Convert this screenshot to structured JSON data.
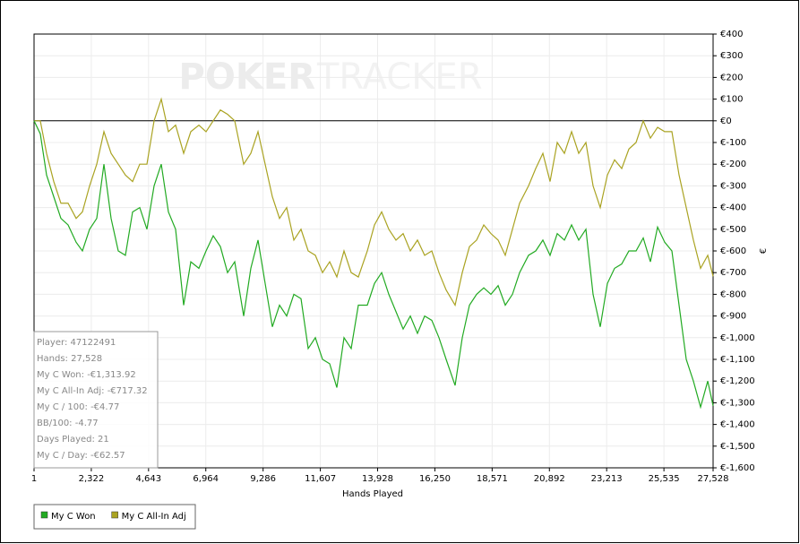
{
  "chart_data": {
    "type": "line",
    "watermark": [
      "POKER",
      "TRACKER"
    ],
    "xlabel": "Hands Played",
    "ylabel": "€",
    "x": [
      1,
      255,
      509,
      800,
      1090,
      1381,
      1708,
      1962,
      2253,
      2543,
      2834,
      3124,
      3415,
      3705,
      3996,
      4286,
      4577,
      4867,
      5158,
      5448,
      5739,
      6066,
      6356,
      6683,
      6974,
      7264,
      7555,
      7845,
      8136,
      8499,
      8789,
      9080,
      9370,
      9661,
      9952,
      10242,
      10533,
      10823,
      11114,
      11404,
      11695,
      11985,
      12276,
      12566,
      12857,
      13147,
      13511,
      13801,
      14092,
      14382,
      14673,
      14963,
      15254,
      15544,
      15835,
      16125,
      16416,
      16706,
      17070,
      17360,
      17651,
      17941,
      18232,
      18522,
      18813,
      19103,
      19394,
      19684,
      20047,
      20338,
      20628,
      20919,
      21210,
      21500,
      21791,
      22081,
      22372,
      22662,
      22953,
      23243,
      23534,
      23824,
      24115,
      24405,
      24696,
      24986,
      25277,
      25567,
      25858,
      26148,
      26439,
      26729,
      27020,
      27311,
      27528
    ],
    "series": [
      {
        "name": "My C Won",
        "color": "#22aa22",
        "values": [
          0,
          -60,
          -250,
          -350,
          -450,
          -480,
          -560,
          -600,
          -500,
          -450,
          -200,
          -450,
          -600,
          -620,
          -420,
          -400,
          -500,
          -300,
          -200,
          -420,
          -500,
          -850,
          -650,
          -680,
          -600,
          -530,
          -580,
          -700,
          -650,
          -900,
          -680,
          -550,
          -750,
          -950,
          -850,
          -900,
          -800,
          -820,
          -1050,
          -1000,
          -1100,
          -1120,
          -1230,
          -1000,
          -1050,
          -850,
          -850,
          -750,
          -700,
          -800,
          -880,
          -960,
          -900,
          -980,
          -900,
          -920,
          -1000,
          -1100,
          -1220,
          -1000,
          -850,
          -800,
          -770,
          -800,
          -760,
          -850,
          -800,
          -700,
          -620,
          -600,
          -550,
          -620,
          -520,
          -550,
          -480,
          -550,
          -500,
          -800,
          -950,
          -750,
          -680,
          -660,
          -600,
          -600,
          -540,
          -650,
          -490,
          -560,
          -600,
          -850,
          -1100,
          -1200,
          -1320,
          -1200,
          -1314
        ]
      },
      {
        "name": "My C All-In Adj",
        "color": "#aaa322",
        "values": [
          0,
          0,
          -150,
          -280,
          -380,
          -380,
          -450,
          -420,
          -300,
          -200,
          -50,
          -150,
          -200,
          -250,
          -280,
          -200,
          -200,
          0,
          100,
          -50,
          -20,
          -150,
          -50,
          -20,
          -50,
          0,
          50,
          30,
          0,
          -200,
          -150,
          -50,
          -200,
          -350,
          -450,
          -400,
          -550,
          -500,
          -600,
          -620,
          -700,
          -650,
          -720,
          -600,
          -700,
          -720,
          -600,
          -480,
          -420,
          -500,
          -550,
          -520,
          -600,
          -550,
          -620,
          -600,
          -700,
          -780,
          -850,
          -700,
          -580,
          -550,
          -480,
          -520,
          -550,
          -620,
          -500,
          -380,
          -300,
          -220,
          -150,
          -280,
          -100,
          -150,
          -50,
          -150,
          -100,
          -300,
          -400,
          -250,
          -180,
          -220,
          -130,
          -100,
          0,
          -80,
          -30,
          -50,
          -50,
          -250,
          -400,
          -550,
          -680,
          -620,
          -717
        ]
      }
    ],
    "xlim": [
      1,
      27528
    ],
    "xticks": [
      1,
      {
        "value": 2322,
        "label": "2,322"
      },
      {
        "value": 4643,
        "label": "4,643"
      },
      {
        "value": 6964,
        "label": "6,964"
      },
      {
        "value": 9286,
        "label": "9,286"
      },
      {
        "value": 11607,
        "label": "11,607"
      },
      {
        "value": 13928,
        "label": "13,928"
      },
      {
        "value": 16250,
        "label": "16,250"
      },
      {
        "value": 18571,
        "label": "18,571"
      },
      {
        "value": 20892,
        "label": "20,892"
      },
      {
        "value": 23213,
        "label": "23,213"
      },
      {
        "value": 25535,
        "label": "25,535"
      },
      {
        "value": 27528,
        "label": "27,528"
      }
    ],
    "ylim": [
      -1600,
      400
    ],
    "yticks": [
      {
        "value": 400,
        "label": "€400"
      },
      {
        "value": 300,
        "label": "€300"
      },
      {
        "value": 200,
        "label": "€200"
      },
      {
        "value": 100,
        "label": "€100"
      },
      {
        "value": 0,
        "label": "€0"
      },
      {
        "value": -100,
        "label": "€-100"
      },
      {
        "value": -200,
        "label": "€-200"
      },
      {
        "value": -300,
        "label": "€-300"
      },
      {
        "value": -400,
        "label": "€-400"
      },
      {
        "value": -500,
        "label": "€-500"
      },
      {
        "value": -600,
        "label": "€-600"
      },
      {
        "value": -700,
        "label": "€-700"
      },
      {
        "value": -800,
        "label": "€-800"
      },
      {
        "value": -900,
        "label": "€-900"
      },
      {
        "value": -1000,
        "label": "€-1,000"
      },
      {
        "value": -1100,
        "label": "€-1,100"
      },
      {
        "value": -1200,
        "label": "€-1,200"
      },
      {
        "value": -1300,
        "label": "€-1,300"
      },
      {
        "value": -1400,
        "label": "€-1,400"
      },
      {
        "value": -1500,
        "label": "€-1,500"
      },
      {
        "value": -1600,
        "label": "€-1,600"
      }
    ],
    "baseline": 0,
    "grid": true,
    "info": [
      "Player: 47122491",
      "Hands: 27,528",
      "My C Won: -€1,313.92",
      "My C All-In Adj: -€717.32",
      "My C / 100: -€4.77",
      "BB/100: -4.77",
      "Days Played: 21",
      "My C / Day: -€62.57"
    ],
    "legend": "bottom-left"
  }
}
